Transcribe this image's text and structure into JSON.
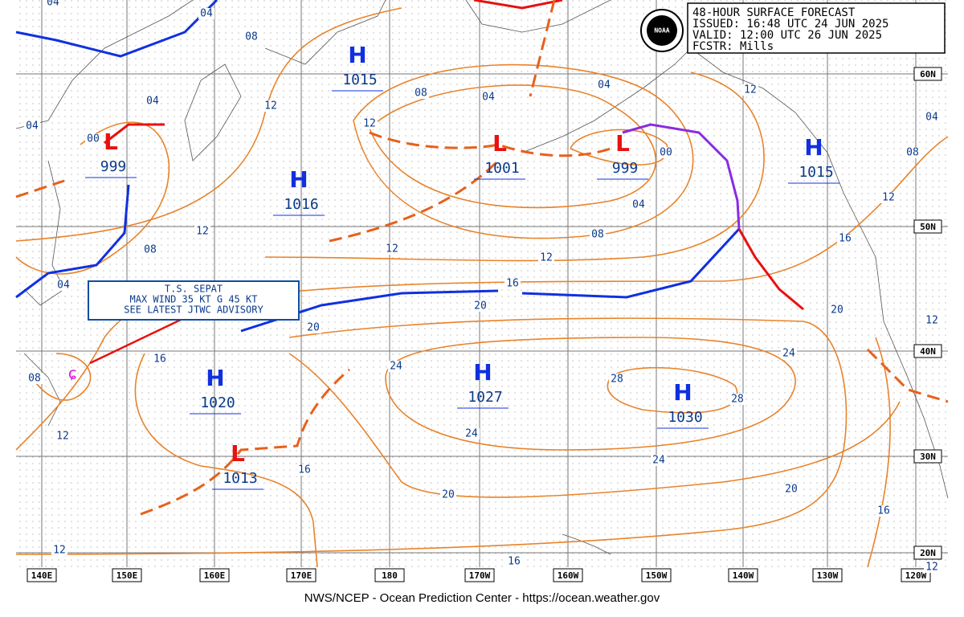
{
  "header": {
    "lines": [
      "48-HOUR SURFACE FORECAST",
      "ISSUED: 16:48 UTC 24 JUN 2025",
      "VALID: 12:00 UTC 26 JUN 2025",
      "FCSTR:  Mills"
    ],
    "logo": "NOAA"
  },
  "systems": [
    {
      "symbol": "H",
      "pressure": 1015
    },
    {
      "symbol": "L",
      "pressure": 999
    },
    {
      "symbol": "H",
      "pressure": 1016
    },
    {
      "symbol": "L",
      "pressure": 1001
    },
    {
      "symbol": "L",
      "pressure": 999
    },
    {
      "symbol": "H",
      "pressure": 1015
    },
    {
      "symbol": "H",
      "pressure": 1020
    },
    {
      "symbol": "H",
      "pressure": 1027
    },
    {
      "symbol": "H",
      "pressure": 1030
    },
    {
      "symbol": "L",
      "pressure": 1013
    }
  ],
  "isobar_labels": [
    "04",
    "04",
    "08",
    "04",
    "04",
    "00",
    "12",
    "12",
    "08",
    "04",
    "04",
    "00",
    "04",
    "08",
    "12",
    "12",
    "12",
    "08",
    "04",
    "16",
    "20",
    "20",
    "16",
    "08",
    "12",
    "24",
    "24",
    "28",
    "28",
    "24",
    "24",
    "20",
    "20",
    "16",
    "12",
    "08",
    "04",
    "12",
    "16",
    "12",
    "16",
    "20",
    "16",
    "12",
    "12"
  ],
  "longitudes": [
    "140E",
    "150E",
    "160E",
    "170E",
    "180",
    "170W",
    "160W",
    "150W",
    "140W",
    "130W",
    "120W"
  ],
  "latitudes": [
    "60N",
    "50N",
    "40N",
    "30N",
    "20N"
  ],
  "storm_box": [
    "T.S. SEPAT",
    "MAX WIND 35 KT G 45 KT",
    "SEE LATEST JTWC ADVISORY"
  ],
  "footer": "NWS/NCEP - Ocean Prediction Center - https://ocean.weather.gov"
}
